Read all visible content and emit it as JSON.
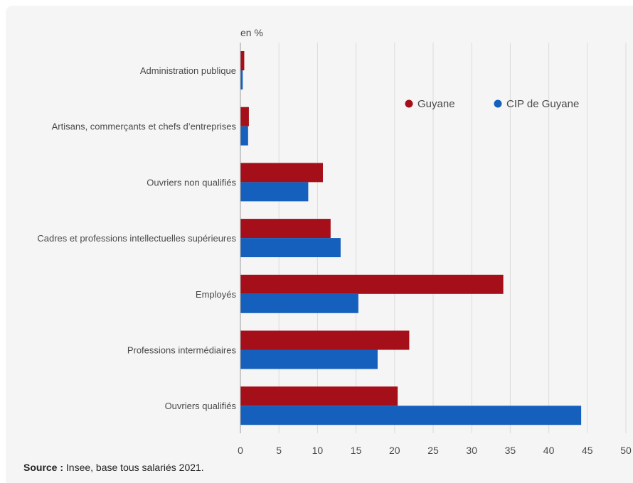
{
  "chart_data": {
    "type": "bar",
    "orientation": "horizontal",
    "unit_label": "en %",
    "categories": [
      "Administration publique",
      "Artisans, commerçants et chefs d’entreprises",
      "Ouvriers non qualifiés",
      "Cadres et professions intellectuelles supérieures",
      "Employés",
      "Professions intermédiaires",
      "Ouvriers qualifiés"
    ],
    "series": [
      {
        "name": "Guyane",
        "color": "#a50f1a",
        "values": [
          0.5,
          1.1,
          10.7,
          11.7,
          34.1,
          21.9,
          20.4
        ]
      },
      {
        "name": "CIP de Guyane",
        "color": "#1560bd",
        "values": [
          0.3,
          1.0,
          8.8,
          13.0,
          15.3,
          17.8,
          44.2
        ]
      }
    ],
    "xlim": [
      0,
      50
    ],
    "x_ticks": [
      0,
      5,
      10,
      15,
      20,
      25,
      30,
      35,
      40,
      45,
      50
    ],
    "grid": true,
    "legend_position": "top-right"
  },
  "source": {
    "label": "Source :",
    "text": " Insee, base tous salariés 2021."
  }
}
